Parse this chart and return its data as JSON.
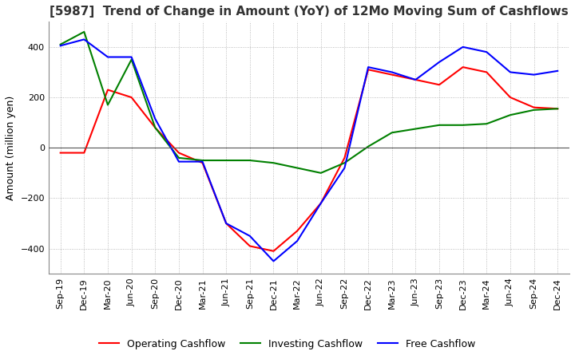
{
  "title": "[5987]  Trend of Change in Amount (YoY) of 12Mo Moving Sum of Cashflows",
  "ylabel": "Amount (million yen)",
  "x_labels": [
    "Sep-19",
    "Dec-19",
    "Mar-20",
    "Jun-20",
    "Sep-20",
    "Dec-20",
    "Mar-21",
    "Jun-21",
    "Sep-21",
    "Dec-21",
    "Mar-22",
    "Jun-22",
    "Sep-22",
    "Dec-22",
    "Mar-23",
    "Jun-23",
    "Sep-23",
    "Dec-23",
    "Mar-24",
    "Jun-24",
    "Sep-24",
    "Dec-24"
  ],
  "operating": [
    -20,
    -20,
    230,
    200,
    80,
    -20,
    -60,
    -300,
    -390,
    -410,
    -330,
    -220,
    -40,
    310,
    290,
    270,
    250,
    320,
    300,
    200,
    160,
    155
  ],
  "investing": [
    410,
    460,
    170,
    350,
    80,
    -40,
    -50,
    -50,
    -50,
    -60,
    -80,
    -100,
    -60,
    5,
    60,
    75,
    90,
    90,
    95,
    130,
    150,
    155
  ],
  "free": [
    405,
    430,
    360,
    360,
    115,
    -55,
    -55,
    -300,
    -350,
    -450,
    -370,
    -220,
    -80,
    320,
    300,
    270,
    340,
    400,
    380,
    300,
    290,
    305
  ],
  "ylim": [
    -500,
    500
  ],
  "yticks": [
    -400,
    -200,
    0,
    200,
    400
  ],
  "colors": {
    "operating": "#ff0000",
    "investing": "#008000",
    "free": "#0000ff"
  },
  "legend_labels": [
    "Operating Cashflow",
    "Investing Cashflow",
    "Free Cashflow"
  ],
  "title_fontsize": 11,
  "axis_fontsize": 9,
  "tick_fontsize": 8,
  "background_color": "#ffffff",
  "grid_color": "#aaaaaa"
}
